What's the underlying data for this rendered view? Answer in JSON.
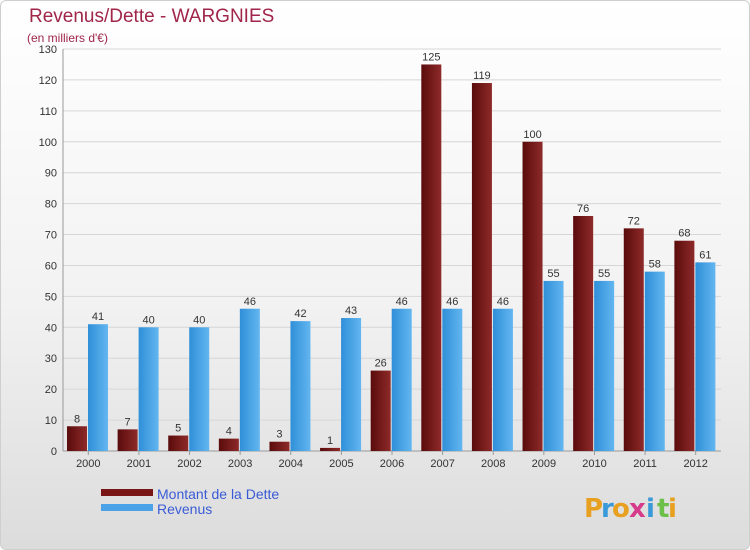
{
  "chart_data": {
    "type": "bar",
    "title": "Revenus/Dette - WARGNIES",
    "subtitle": "(en milliers d'€)",
    "categories": [
      "2000",
      "2001",
      "2002",
      "2003",
      "2004",
      "2005",
      "2006",
      "2007",
      "2008",
      "2009",
      "2010",
      "2011",
      "2012"
    ],
    "series": [
      {
        "name": "Montant de la Dette",
        "color": "#7a1515",
        "values": [
          8,
          7,
          5,
          4,
          3,
          1,
          26,
          125,
          119,
          100,
          76,
          72,
          68
        ]
      },
      {
        "name": "Revenus",
        "color": "#4aa3e8",
        "values": [
          41,
          40,
          40,
          46,
          42,
          43,
          46,
          46,
          46,
          55,
          55,
          58,
          61
        ]
      }
    ],
    "ylim": [
      0,
      130
    ],
    "yticks": [
      0,
      10,
      20,
      30,
      40,
      50,
      60,
      70,
      80,
      90,
      100,
      110,
      120,
      130
    ],
    "grid": true,
    "legend": "bottom-left"
  },
  "logo": {
    "letters": [
      "P",
      "r",
      "o",
      "x",
      "i",
      "t",
      "i"
    ],
    "colors": [
      "#e8a020",
      "#3a9ad9",
      "#e8a020",
      "#d63a8a",
      "#3a9ad9",
      "#6cc04a",
      "#e8a020"
    ]
  }
}
